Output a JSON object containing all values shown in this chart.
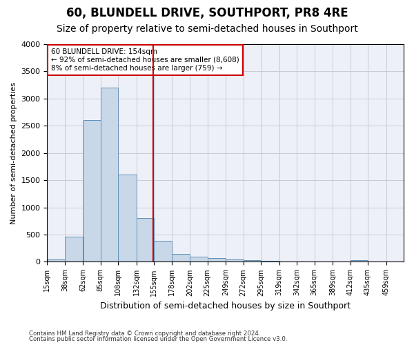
{
  "title": "60, BLUNDELL DRIVE, SOUTHPORT, PR8 4RE",
  "subtitle": "Size of property relative to semi-detached houses in Southport",
  "xlabel": "Distribution of semi-detached houses by size in Southport",
  "ylabel": "Number of semi-detached properties",
  "footer_line1": "Contains HM Land Registry data © Crown copyright and database right 2024.",
  "footer_line2": "Contains public sector information licensed under the Open Government Licence v3.0.",
  "annotation_title": "60 BLUNDELL DRIVE: 154sqm",
  "annotation_line1": "← 92% of semi-detached houses are smaller (8,608)",
  "annotation_line2": "8% of semi-detached houses are larger (759) →",
  "property_size": 154,
  "bar_edges": [
    15,
    38,
    62,
    85,
    108,
    132,
    155,
    178,
    202,
    225,
    249,
    272,
    295,
    319,
    342,
    365,
    389,
    412,
    435,
    459,
    482
  ],
  "bar_heights": [
    50,
    460,
    2600,
    3200,
    1600,
    800,
    390,
    145,
    90,
    75,
    50,
    30,
    20,
    10,
    5,
    5,
    0,
    30,
    0,
    0
  ],
  "bar_color": "#c8d8e8",
  "bar_edge_color": "#6090b8",
  "vline_color": "#cc0000",
  "vline_x": 154,
  "box_color": "#cc0000",
  "ylim": [
    0,
    4000
  ],
  "yticks": [
    0,
    500,
    1000,
    1500,
    2000,
    2500,
    3000,
    3500,
    4000
  ],
  "grid_color": "#c8c8d8",
  "bg_color": "#eef0f8",
  "title_fontsize": 12,
  "subtitle_fontsize": 10
}
